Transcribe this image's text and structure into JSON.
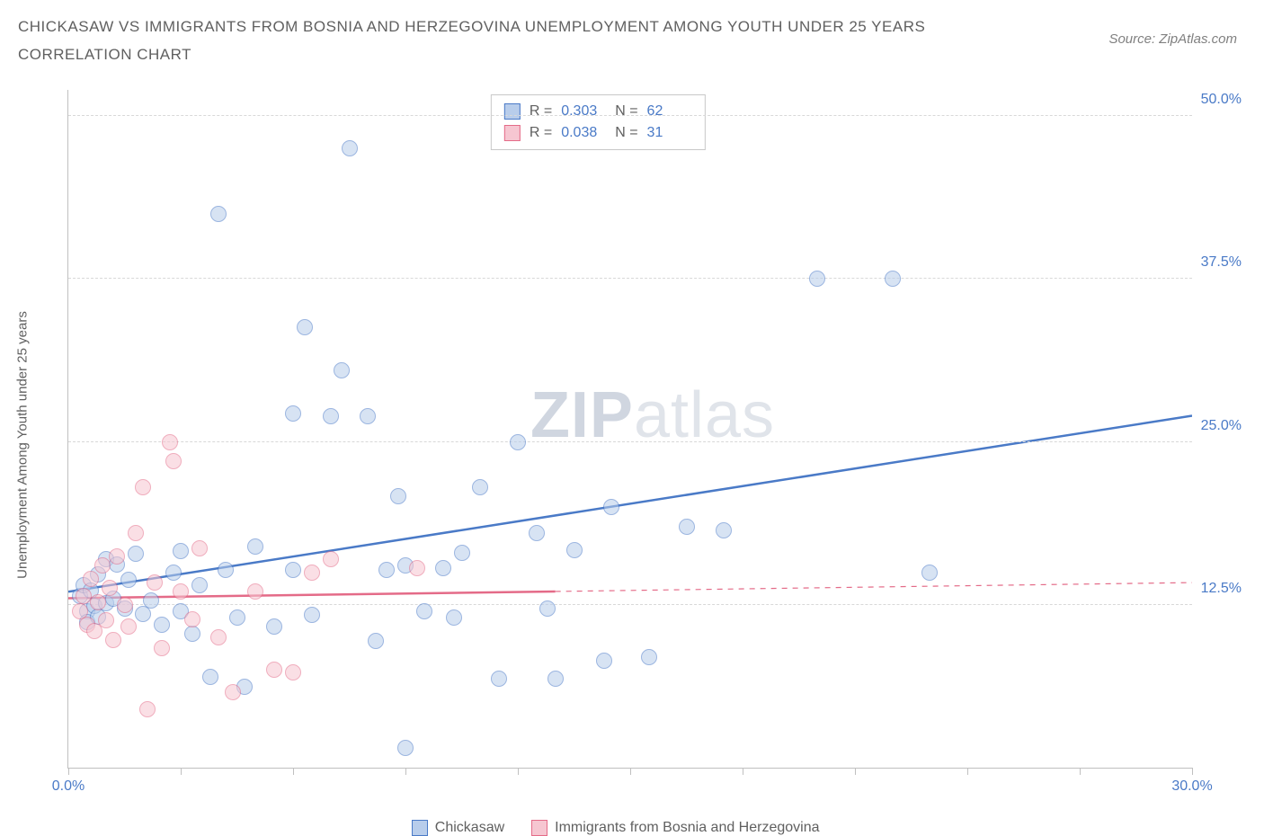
{
  "title_line1": "CHICKASAW VS IMMIGRANTS FROM BOSNIA AND HERZEGOVINA UNEMPLOYMENT AMONG YOUTH UNDER 25 YEARS",
  "title_line2": "CORRELATION CHART",
  "source_label": "Source: ZipAtlas.com",
  "y_axis_label": "Unemployment Among Youth under 25 years",
  "watermark_a": "ZIP",
  "watermark_b": "atlas",
  "chart": {
    "type": "scatter",
    "x_min": 0,
    "x_max": 30,
    "y_min": 0,
    "y_max": 52,
    "x_ticks": [
      0,
      3,
      6,
      9,
      12,
      15,
      18,
      21,
      24,
      27,
      30
    ],
    "x_tick_labels": {
      "0": "0.0%",
      "30": "30.0%"
    },
    "y_gridlines": [
      12.5,
      25.0,
      37.5,
      50.0
    ],
    "y_tick_labels": [
      "12.5%",
      "25.0%",
      "37.5%",
      "50.0%"
    ],
    "background_color": "#ffffff",
    "grid_color": "#d8d8d8",
    "axis_color": "#c0c0c0",
    "tick_label_color": "#4a7ac7",
    "marker_radius": 9,
    "marker_opacity": 0.55,
    "line_width": 2.5,
    "series": [
      {
        "name": "Chickasaw",
        "color_stroke": "#4a7ac7",
        "color_fill": "#b8cdeb",
        "R": "0.303",
        "N": "62",
        "trend": {
          "x1": 0,
          "y1": 13.5,
          "x2": 30,
          "y2": 27.0,
          "dash": false,
          "extrapolate_from_x": null
        },
        "points": [
          [
            0.3,
            13.2
          ],
          [
            0.4,
            14.0
          ],
          [
            0.5,
            12.0
          ],
          [
            0.5,
            11.2
          ],
          [
            0.6,
            13.6
          ],
          [
            0.7,
            12.4
          ],
          [
            0.8,
            11.6
          ],
          [
            0.8,
            14.8
          ],
          [
            1.0,
            12.6
          ],
          [
            1.0,
            16.0
          ],
          [
            1.2,
            13.0
          ],
          [
            1.3,
            15.6
          ],
          [
            1.5,
            12.2
          ],
          [
            1.6,
            14.4
          ],
          [
            1.8,
            16.4
          ],
          [
            2.0,
            11.8
          ],
          [
            2.2,
            12.8
          ],
          [
            2.5,
            11.0
          ],
          [
            2.8,
            15.0
          ],
          [
            3.0,
            12.0
          ],
          [
            3.0,
            16.6
          ],
          [
            3.3,
            10.3
          ],
          [
            3.5,
            14.0
          ],
          [
            3.8,
            7.0
          ],
          [
            4.0,
            42.5
          ],
          [
            4.2,
            15.2
          ],
          [
            4.5,
            11.5
          ],
          [
            4.7,
            6.2
          ],
          [
            5.0,
            17.0
          ],
          [
            5.5,
            10.8
          ],
          [
            6.0,
            15.2
          ],
          [
            6.0,
            27.2
          ],
          [
            6.3,
            33.8
          ],
          [
            6.5,
            11.7
          ],
          [
            7.0,
            27.0
          ],
          [
            7.3,
            30.5
          ],
          [
            7.5,
            47.5
          ],
          [
            8.0,
            27.0
          ],
          [
            8.2,
            9.7
          ],
          [
            8.5,
            15.2
          ],
          [
            8.8,
            20.8
          ],
          [
            9.0,
            1.5
          ],
          [
            9.0,
            15.5
          ],
          [
            9.5,
            12.0
          ],
          [
            10.0,
            15.3
          ],
          [
            10.3,
            11.5
          ],
          [
            10.5,
            16.5
          ],
          [
            11.0,
            21.5
          ],
          [
            11.5,
            6.8
          ],
          [
            12.0,
            25.0
          ],
          [
            12.5,
            18.0
          ],
          [
            12.8,
            12.2
          ],
          [
            13.0,
            6.8
          ],
          [
            13.5,
            16.7
          ],
          [
            14.3,
            8.2
          ],
          [
            14.5,
            20.0
          ],
          [
            15.5,
            8.5
          ],
          [
            16.5,
            18.5
          ],
          [
            17.5,
            18.2
          ],
          [
            20.0,
            37.5
          ],
          [
            22.0,
            37.5
          ],
          [
            23.0,
            15.0
          ]
        ]
      },
      {
        "name": "Immigrants from Bosnia and Herzegovina",
        "color_stroke": "#e46b88",
        "color_fill": "#f6c6d1",
        "R": "0.038",
        "N": "31",
        "trend": {
          "x1": 0,
          "y1": 13.0,
          "x2": 30,
          "y2": 14.2,
          "dash": true,
          "extrapolate_from_x": 13.0
        },
        "points": [
          [
            0.3,
            12.0
          ],
          [
            0.4,
            13.2
          ],
          [
            0.5,
            11.0
          ],
          [
            0.6,
            14.5
          ],
          [
            0.7,
            10.5
          ],
          [
            0.8,
            12.7
          ],
          [
            0.9,
            15.5
          ],
          [
            1.0,
            11.3
          ],
          [
            1.1,
            13.8
          ],
          [
            1.2,
            9.8
          ],
          [
            1.3,
            16.2
          ],
          [
            1.5,
            12.5
          ],
          [
            1.6,
            10.8
          ],
          [
            1.8,
            18.0
          ],
          [
            2.0,
            21.5
          ],
          [
            2.1,
            4.5
          ],
          [
            2.3,
            14.2
          ],
          [
            2.5,
            9.2
          ],
          [
            2.7,
            25.0
          ],
          [
            2.8,
            23.5
          ],
          [
            3.0,
            13.5
          ],
          [
            3.3,
            11.4
          ],
          [
            3.5,
            16.8
          ],
          [
            4.0,
            10.0
          ],
          [
            4.4,
            5.8
          ],
          [
            5.0,
            13.5
          ],
          [
            5.5,
            7.5
          ],
          [
            6.0,
            7.3
          ],
          [
            6.5,
            15.0
          ],
          [
            7.0,
            16.0
          ],
          [
            9.3,
            15.3
          ]
        ]
      }
    ]
  },
  "stats_box": {
    "rows": [
      {
        "swatch_fill": "#b8cdeb",
        "swatch_stroke": "#4a7ac7",
        "r_label": "R =",
        "r_value": "0.303",
        "n_label": "N =",
        "n_value": "62"
      },
      {
        "swatch_fill": "#f6c6d1",
        "swatch_stroke": "#e46b88",
        "r_label": "R =",
        "r_value": "0.038",
        "n_label": "N =",
        "n_value": "31"
      }
    ]
  },
  "bottom_legend": [
    {
      "swatch_fill": "#b8cdeb",
      "swatch_stroke": "#4a7ac7",
      "label": "Chickasaw"
    },
    {
      "swatch_fill": "#f6c6d1",
      "swatch_stroke": "#e46b88",
      "label": "Immigrants from Bosnia and Herzegovina"
    }
  ]
}
